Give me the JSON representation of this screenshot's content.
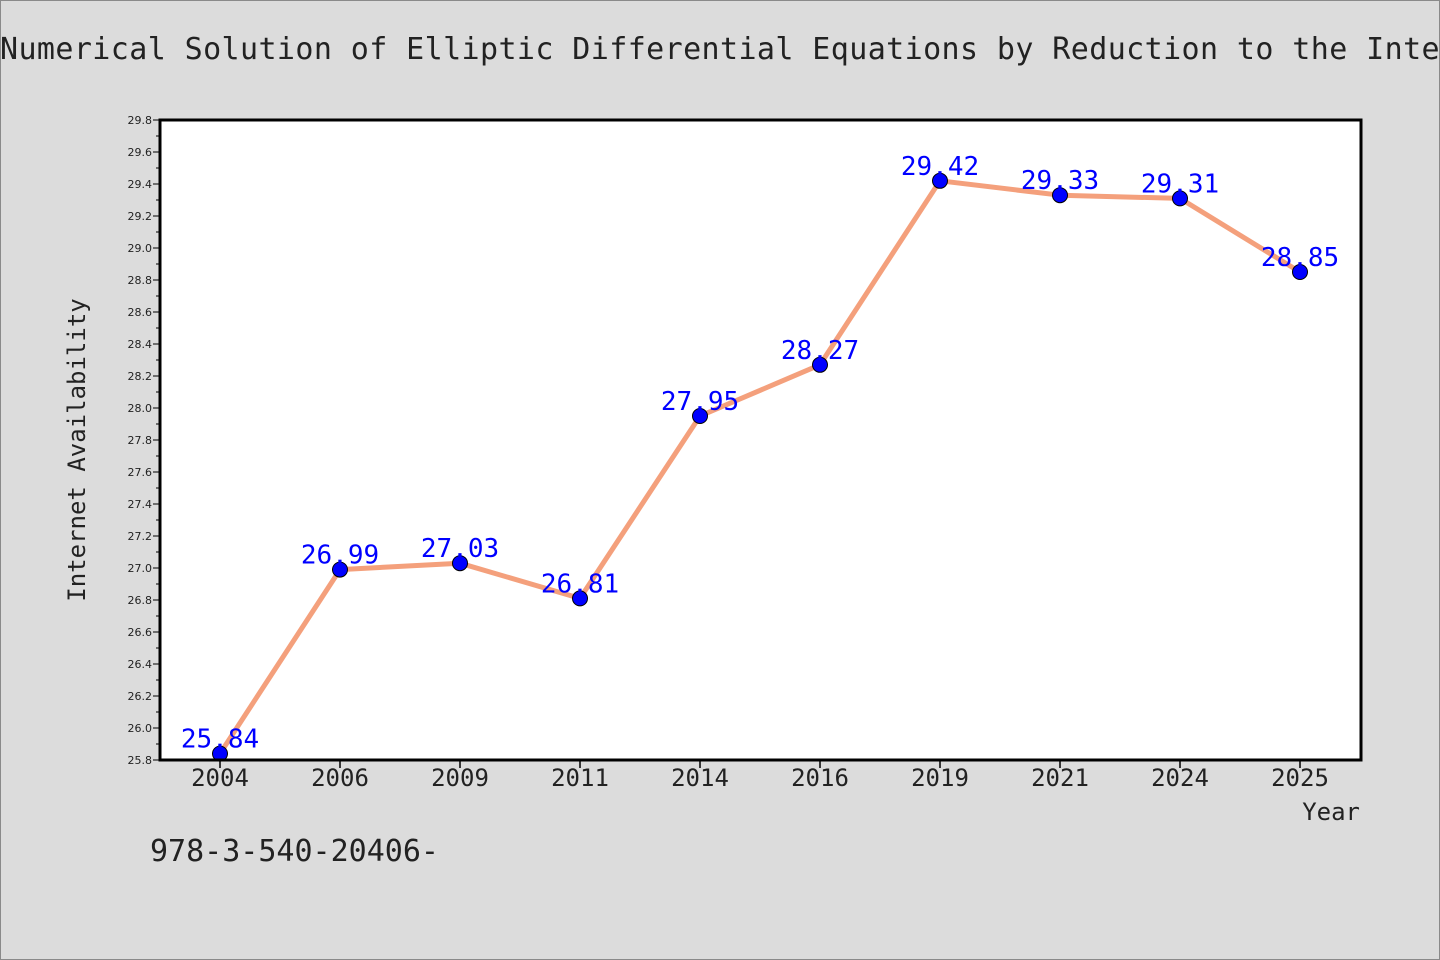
{
  "page": {
    "background": "#dcdcdc"
  },
  "title": "Numerical Solution of Elliptic Differential Equations by Reduction to the Interf",
  "footer_text": "978-3-540-20406-",
  "chart_data": {
    "type": "line",
    "title": "Numerical Solution of Elliptic Differential Equations by Reduction to the Interf",
    "xlabel": "Year",
    "ylabel": "Internet Availability",
    "categories": [
      "2004",
      "2006",
      "2009",
      "2011",
      "2014",
      "2016",
      "2019",
      "2021",
      "2024",
      "2025"
    ],
    "series": [
      {
        "values": [
          25.84,
          26.99,
          27.03,
          26.81,
          27.95,
          28.27,
          29.42,
          29.33,
          29.31,
          28.85
        ],
        "line_color": "#f4a07c",
        "marker_color": "#0000ff",
        "label_color": "#0000ff"
      }
    ],
    "data_labels": [
      "25.84",
      "26.99",
      "27.03",
      "26.81",
      "27.95",
      "28.27",
      "29.42",
      "29.33",
      "29.31",
      "28.85"
    ],
    "ylim": [
      25.8,
      29.8
    ],
    "yticks": [
      "25.8",
      "26.0",
      "26.2",
      "26.4",
      "26.6",
      "26.8",
      "27.0",
      "27.2",
      "27.4",
      "27.6",
      "27.8",
      "28.0",
      "28.2",
      "28.4",
      "28.6",
      "28.8",
      "29.0",
      "29.2",
      "29.4",
      "29.6",
      "29.8"
    ],
    "grid": false,
    "legend": "none",
    "plot_background": "#ffffff"
  }
}
